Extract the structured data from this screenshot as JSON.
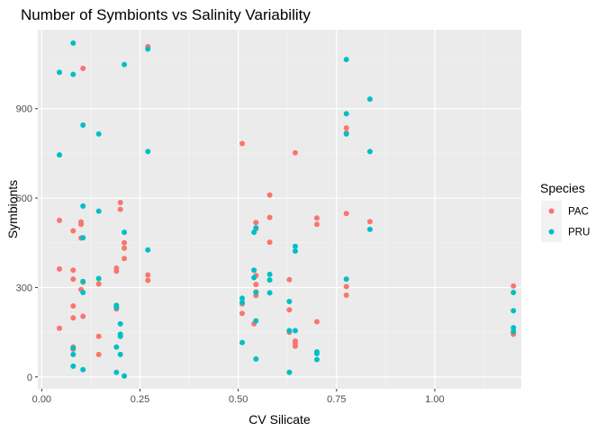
{
  "chart_data": {
    "type": "scatter",
    "title": "Number of Symbionts vs Salinity Variability",
    "xlabel": "CV Silicate",
    "ylabel": "Symbionts",
    "xlim": [
      -0.01,
      1.22
    ],
    "ylim": [
      -40,
      1165
    ],
    "x_ticks": [
      0.0,
      0.25,
      0.5,
      0.75,
      1.0
    ],
    "x_tick_labels": [
      "0.00",
      "0.25",
      "0.50",
      "0.75",
      "1.00"
    ],
    "y_ticks": [
      0,
      300,
      600,
      900
    ],
    "y_tick_labels": [
      "0",
      "300",
      "600",
      "900"
    ],
    "grid": true,
    "legend": {
      "title": "Species",
      "position": "right",
      "entries": [
        {
          "label": "PAC",
          "color": "#F8766D"
        },
        {
          "label": "PRU",
          "color": "#00BFC4"
        }
      ]
    },
    "series": [
      {
        "name": "PAC",
        "color": "#F8766D",
        "points": [
          [
            0.105,
            1035
          ],
          [
            0.27,
            1108
          ],
          [
            0.045,
            525
          ],
          [
            0.08,
            490
          ],
          [
            0.1,
            512
          ],
          [
            0.1,
            520
          ],
          [
            0.1,
            466
          ],
          [
            0.2,
            585
          ],
          [
            0.2,
            562
          ],
          [
            0.21,
            450
          ],
          [
            0.21,
            432
          ],
          [
            0.21,
            397
          ],
          [
            0.045,
            362
          ],
          [
            0.08,
            358
          ],
          [
            0.08,
            328
          ],
          [
            0.105,
            318
          ],
          [
            0.1,
            293
          ],
          [
            0.145,
            312
          ],
          [
            0.19,
            365
          ],
          [
            0.19,
            355
          ],
          [
            0.27,
            342
          ],
          [
            0.27,
            324
          ],
          [
            0.08,
            238
          ],
          [
            0.08,
            198
          ],
          [
            0.105,
            203
          ],
          [
            0.19,
            228
          ],
          [
            0.045,
            163
          ],
          [
            0.145,
            136
          ],
          [
            0.08,
            100
          ],
          [
            0.08,
            93
          ],
          [
            0.145,
            75
          ],
          [
            0.51,
            783
          ],
          [
            0.645,
            752
          ],
          [
            0.58,
            610
          ],
          [
            0.58,
            535
          ],
          [
            0.545,
            518
          ],
          [
            0.545,
            497
          ],
          [
            0.58,
            452
          ],
          [
            0.545,
            340
          ],
          [
            0.545,
            310
          ],
          [
            0.545,
            285
          ],
          [
            0.545,
            273
          ],
          [
            0.63,
            326
          ],
          [
            0.51,
            245
          ],
          [
            0.51,
            213
          ],
          [
            0.63,
            225
          ],
          [
            0.54,
            178
          ],
          [
            0.63,
            150
          ],
          [
            0.645,
            120
          ],
          [
            0.645,
            112
          ],
          [
            0.645,
            103
          ],
          [
            0.7,
            185
          ],
          [
            0.7,
            533
          ],
          [
            0.7,
            512
          ],
          [
            0.775,
            835
          ],
          [
            0.775,
            818
          ],
          [
            0.775,
            548
          ],
          [
            0.775,
            303
          ],
          [
            0.775,
            274
          ],
          [
            0.835,
            521
          ],
          [
            1.2,
            305
          ],
          [
            1.2,
            148
          ],
          [
            1.2,
            143
          ]
        ]
      },
      {
        "name": "PRU",
        "color": "#00BFC4",
        "points": [
          [
            0.08,
            1120
          ],
          [
            0.045,
            1022
          ],
          [
            0.08,
            1015
          ],
          [
            0.27,
            1100
          ],
          [
            0.21,
            1048
          ],
          [
            0.105,
            845
          ],
          [
            0.145,
            815
          ],
          [
            0.045,
            745
          ],
          [
            0.27,
            756
          ],
          [
            0.105,
            573
          ],
          [
            0.145,
            556
          ],
          [
            0.21,
            485
          ],
          [
            0.105,
            467
          ],
          [
            0.27,
            426
          ],
          [
            0.145,
            330
          ],
          [
            0.105,
            320
          ],
          [
            0.105,
            283
          ],
          [
            0.19,
            240
          ],
          [
            0.19,
            233
          ],
          [
            0.2,
            178
          ],
          [
            0.2,
            143
          ],
          [
            0.2,
            136
          ],
          [
            0.19,
            100
          ],
          [
            0.08,
            97
          ],
          [
            0.08,
            75
          ],
          [
            0.2,
            75
          ],
          [
            0.08,
            36
          ],
          [
            0.105,
            24
          ],
          [
            0.19,
            15
          ],
          [
            0.21,
            3
          ],
          [
            0.54,
            485
          ],
          [
            0.545,
            500
          ],
          [
            0.645,
            438
          ],
          [
            0.645,
            422
          ],
          [
            0.54,
            358
          ],
          [
            0.58,
            344
          ],
          [
            0.54,
            333
          ],
          [
            0.58,
            325
          ],
          [
            0.51,
            264
          ],
          [
            0.51,
            250
          ],
          [
            0.63,
            253
          ],
          [
            0.545,
            283
          ],
          [
            0.58,
            282
          ],
          [
            0.545,
            188
          ],
          [
            0.63,
            155
          ],
          [
            0.645,
            155
          ],
          [
            0.51,
            115
          ],
          [
            0.7,
            84
          ],
          [
            0.7,
            78
          ],
          [
            0.7,
            58
          ],
          [
            0.545,
            60
          ],
          [
            0.63,
            15
          ],
          [
            0.775,
            1065
          ],
          [
            0.775,
            883
          ],
          [
            0.775,
            815
          ],
          [
            0.835,
            932
          ],
          [
            0.835,
            756
          ],
          [
            0.835,
            495
          ],
          [
            0.775,
            328
          ],
          [
            1.2,
            283
          ],
          [
            1.2,
            222
          ],
          [
            1.2,
            165
          ],
          [
            1.2,
            152
          ]
        ]
      }
    ]
  }
}
